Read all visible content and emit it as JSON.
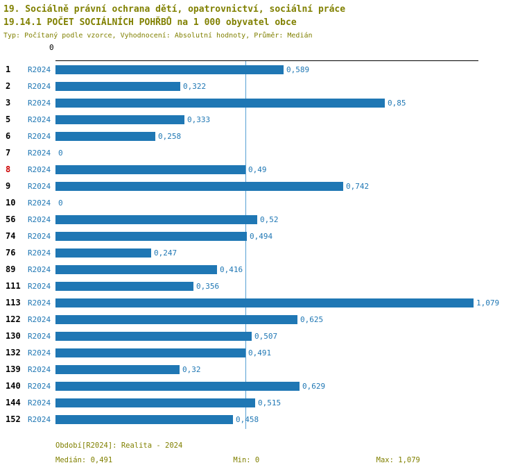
{
  "header": {
    "title_line1": "19. Sociálně právní ochrana dětí, opatrovnictví, sociální práce",
    "title_line2": "19.14.1 POČET SOCIÁLNÍCH POHŘBŮ na 1 000 obyvatel obce",
    "subtitle": "Typ: Počítaný podle vzorce, Vyhodnocení: Absolutní hodnoty, Průměr: Medián"
  },
  "chart_data": {
    "type": "bar",
    "orientation": "horizontal",
    "title": "19.14.1 POČET SOCIÁLNÍCH POHŘBŮ na 1 000 obyvatel obce",
    "x_axis_zero_label": "0",
    "series_name": "R2024",
    "categories": [
      "1",
      "2",
      "3",
      "5",
      "6",
      "7",
      "8",
      "9",
      "10",
      "56",
      "74",
      "76",
      "89",
      "111",
      "113",
      "122",
      "130",
      "132",
      "139",
      "140",
      "144",
      "152"
    ],
    "values": [
      0.589,
      0.322,
      0.85,
      0.333,
      0.258,
      0,
      0.49,
      0.742,
      0,
      0.52,
      0.494,
      0.247,
      0.416,
      0.356,
      1.079,
      0.625,
      0.507,
      0.491,
      0.32,
      0.629,
      0.515,
      0.458
    ],
    "value_labels": [
      "0,589",
      "0,322",
      "0,85",
      "0,333",
      "0,258",
      "0",
      "0,49",
      "0,742",
      "0",
      "0,52",
      "0,494",
      "0,247",
      "0,416",
      "0,356",
      "1,079",
      "0,625",
      "0,507",
      "0,491",
      "0,32",
      "0,629",
      "0,515",
      "0,458"
    ],
    "highlight_categories": [
      "8"
    ],
    "median": 0.491,
    "xlim": [
      0,
      1.079
    ],
    "grid": false,
    "legend": "none",
    "colors": {
      "bar": "#1f77b4",
      "median_line": "#56a0d3",
      "value_label": "#1f77b4",
      "series_label": "#1f77b4",
      "highlight_category": "#cc0000",
      "title_text": "#808000"
    }
  },
  "footer": {
    "period": "Období[R2024]: Realita - 2024",
    "median_label": "Medián: 0,491",
    "min_label": "Min: 0",
    "max_label": "Max: 1,079"
  }
}
